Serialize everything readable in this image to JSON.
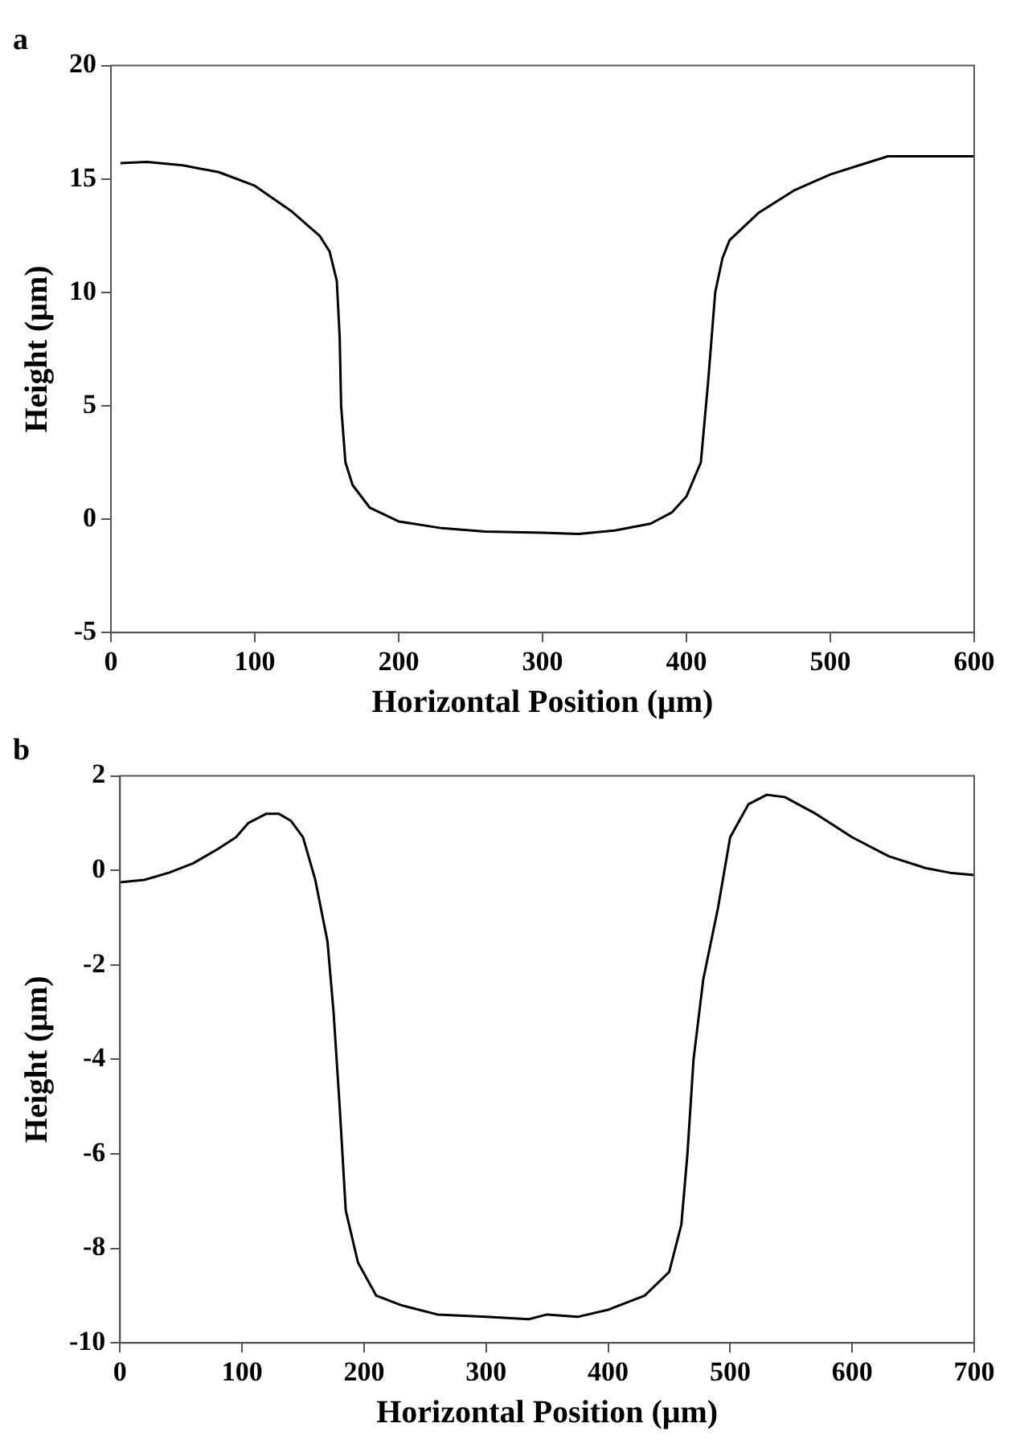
{
  "chart_data": [
    {
      "type": "line",
      "title": "a",
      "xlabel": "Horizontal Position (μm)",
      "ylabel": "Height (μm)",
      "marker": "none",
      "line_style": "solid",
      "grid": false,
      "legend": false,
      "xlim": [
        0,
        600
      ],
      "xticks": [
        0,
        100,
        200,
        300,
        400,
        500,
        600
      ],
      "ylim": [
        -5,
        20
      ],
      "yticks": [
        -5,
        0,
        5,
        10,
        15,
        20
      ],
      "series": [
        {
          "color": "#000000",
          "x": [
            6.6,
            25,
            50,
            75,
            100,
            125,
            145,
            152,
            157,
            159,
            160,
            163,
            168,
            180,
            200,
            230,
            260,
            300,
            325,
            350,
            375,
            390,
            400,
            410,
            415,
            420,
            425,
            430,
            450,
            475,
            500,
            520,
            540,
            570,
            600
          ],
          "values": [
            15.7,
            15.75,
            15.6,
            15.3,
            14.7,
            13.6,
            12.5,
            11.8,
            10.5,
            8,
            5,
            2.5,
            1.5,
            0.5,
            -0.1,
            -0.4,
            -0.55,
            -0.6,
            -0.65,
            -0.5,
            -0.2,
            0.3,
            1,
            2.5,
            6,
            10,
            11.5,
            12.3,
            13.5,
            14.5,
            15.2,
            15.6,
            16,
            16,
            16
          ]
        }
      ]
    },
    {
      "type": "line",
      "title": "b",
      "xlabel": "Horizontal Position (μm)",
      "ylabel": "Height (μm)",
      "marker": "none",
      "line_style": "solid",
      "grid": false,
      "legend": false,
      "xlim": [
        0,
        700
      ],
      "xticks": [
        0,
        100,
        200,
        300,
        400,
        500,
        600,
        700
      ],
      "ylim": [
        -10,
        2
      ],
      "yticks": [
        -10,
        -8,
        -6,
        -4,
        -2,
        0,
        2
      ],
      "series": [
        {
          "color": "#000000",
          "x": [
            0,
            20,
            40,
            60,
            80,
            95,
            105,
            120,
            130,
            140,
            150,
            160,
            170,
            175,
            180,
            185,
            195,
            210,
            230,
            260,
            300,
            335,
            350,
            375,
            400,
            430,
            450,
            460,
            465,
            470,
            478,
            490,
            500,
            515,
            530,
            545,
            570,
            600,
            630,
            660,
            680,
            700
          ],
          "values": [
            -0.25,
            -0.2,
            -0.05,
            0.15,
            0.45,
            0.7,
            1.0,
            1.2,
            1.2,
            1.05,
            0.7,
            -0.2,
            -1.5,
            -3,
            -5,
            -7.2,
            -8.3,
            -9.0,
            -9.2,
            -9.4,
            -9.45,
            -9.5,
            -9.4,
            -9.45,
            -9.3,
            -9.0,
            -8.5,
            -7.5,
            -6,
            -4,
            -2.3,
            -0.8,
            0.7,
            1.4,
            1.6,
            1.55,
            1.2,
            0.7,
            0.3,
            0.05,
            -0.05,
            -0.1
          ]
        }
      ]
    }
  ]
}
